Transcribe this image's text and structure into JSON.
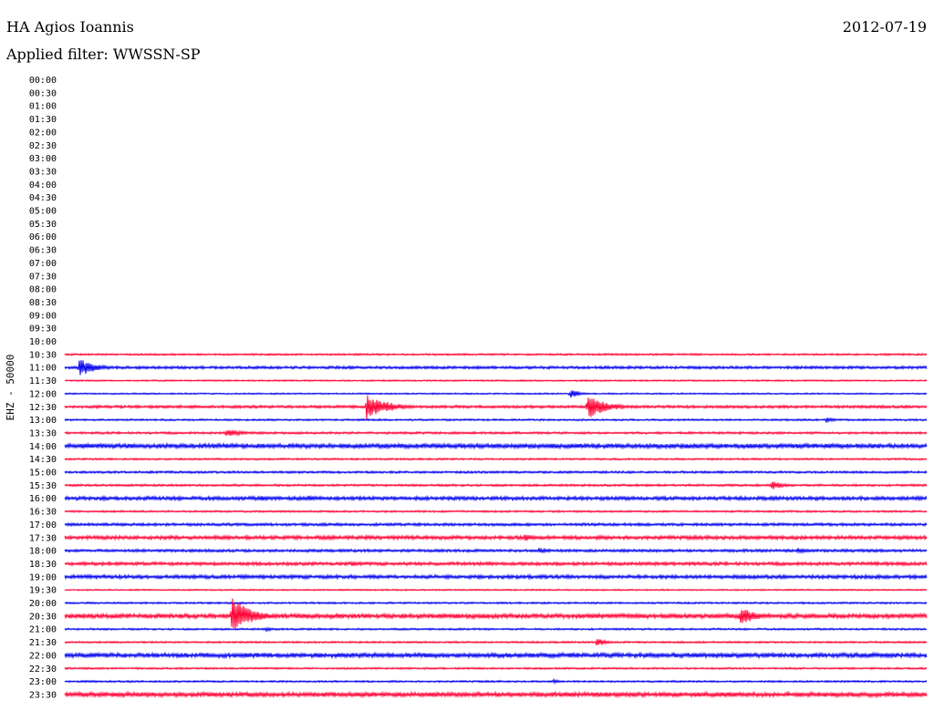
{
  "header": {
    "station": "HA Agios Ioannis",
    "date": "2012-07-19",
    "filter": "Applied filter: WWSSN-SP"
  },
  "chart_data": {
    "type": "line",
    "ylabel": "EHZ - 50000",
    "colors": {
      "odd_rows": "#ff0033",
      "even_rows": "#0000ee"
    },
    "row_labels": [
      "00:00",
      "00:30",
      "01:00",
      "01:30",
      "02:00",
      "02:30",
      "03:00",
      "03:30",
      "04:00",
      "04:30",
      "05:00",
      "05:30",
      "06:00",
      "06:30",
      "07:00",
      "07:30",
      "08:00",
      "08:30",
      "09:00",
      "09:30",
      "10:00",
      "10:30",
      "11:00",
      "11:30",
      "12:00",
      "12:30",
      "13:00",
      "13:30",
      "14:00",
      "14:30",
      "15:00",
      "15:30",
      "16:00",
      "16:30",
      "17:00",
      "17:30",
      "18:00",
      "18:30",
      "19:00",
      "19:30",
      "20:00",
      "20:30",
      "21:00",
      "21:30",
      "22:00",
      "22:30",
      "23:00",
      "23:30"
    ],
    "first_row_with_data": "10:30",
    "noise_level": {
      "10:30": 1,
      "11:00": 1.5,
      "11:30": 0.8,
      "12:00": 0.8,
      "12:30": 1.5,
      "13:00": 1,
      "13:30": 1.2,
      "14:00": 2.5,
      "14:30": 1,
      "15:00": 1.2,
      "15:30": 1.2,
      "16:00": 2,
      "16:30": 1,
      "17:00": 1.5,
      "17:30": 2,
      "18:00": 1.5,
      "18:30": 1.8,
      "19:00": 2,
      "19:30": 0.8,
      "20:00": 1,
      "20:30": 2.5,
      "21:00": 1,
      "21:30": 1,
      "22:00": 2.5,
      "22:30": 1,
      "23:00": 1,
      "23:30": 2.5
    },
    "events": [
      {
        "row": "11:00",
        "minute": 0.5,
        "amp": 11,
        "dur": 1.5
      },
      {
        "row": "12:00",
        "minute": 17.6,
        "amp": 6,
        "dur": 0.8
      },
      {
        "row": "12:30",
        "minute": 10.5,
        "amp": 15,
        "dur": 2
      },
      {
        "row": "12:30",
        "minute": 18.2,
        "amp": 14,
        "dur": 1.8
      },
      {
        "row": "13:00",
        "minute": 26.5,
        "amp": 3,
        "dur": 1
      },
      {
        "row": "13:30",
        "minute": 5.6,
        "amp": 5,
        "dur": 1.5
      },
      {
        "row": "15:30",
        "minute": 24.6,
        "amp": 6,
        "dur": 1
      },
      {
        "row": "16:00",
        "minute": 6.8,
        "amp": 3,
        "dur": 1.5
      },
      {
        "row": "16:00",
        "minute": 8.5,
        "amp": 3,
        "dur": 1.5
      },
      {
        "row": "17:30",
        "minute": 16.0,
        "amp": 5,
        "dur": 1
      },
      {
        "row": "18:00",
        "minute": 16.5,
        "amp": 3,
        "dur": 1.2
      },
      {
        "row": "18:00",
        "minute": 25.5,
        "amp": 3,
        "dur": 1.5
      },
      {
        "row": "18:30",
        "minute": 10.0,
        "amp": 3,
        "dur": 1.2
      },
      {
        "row": "20:30",
        "minute": 5.8,
        "amp": 22,
        "dur": 1.8
      },
      {
        "row": "20:30",
        "minute": 23.5,
        "amp": 11,
        "dur": 1.5
      },
      {
        "row": "21:00",
        "minute": 7.0,
        "amp": 3,
        "dur": 0.6
      },
      {
        "row": "21:30",
        "minute": 18.5,
        "amp": 5,
        "dur": 1
      },
      {
        "row": "23:00",
        "minute": 17.0,
        "amp": 3,
        "dur": 0.6
      }
    ]
  }
}
